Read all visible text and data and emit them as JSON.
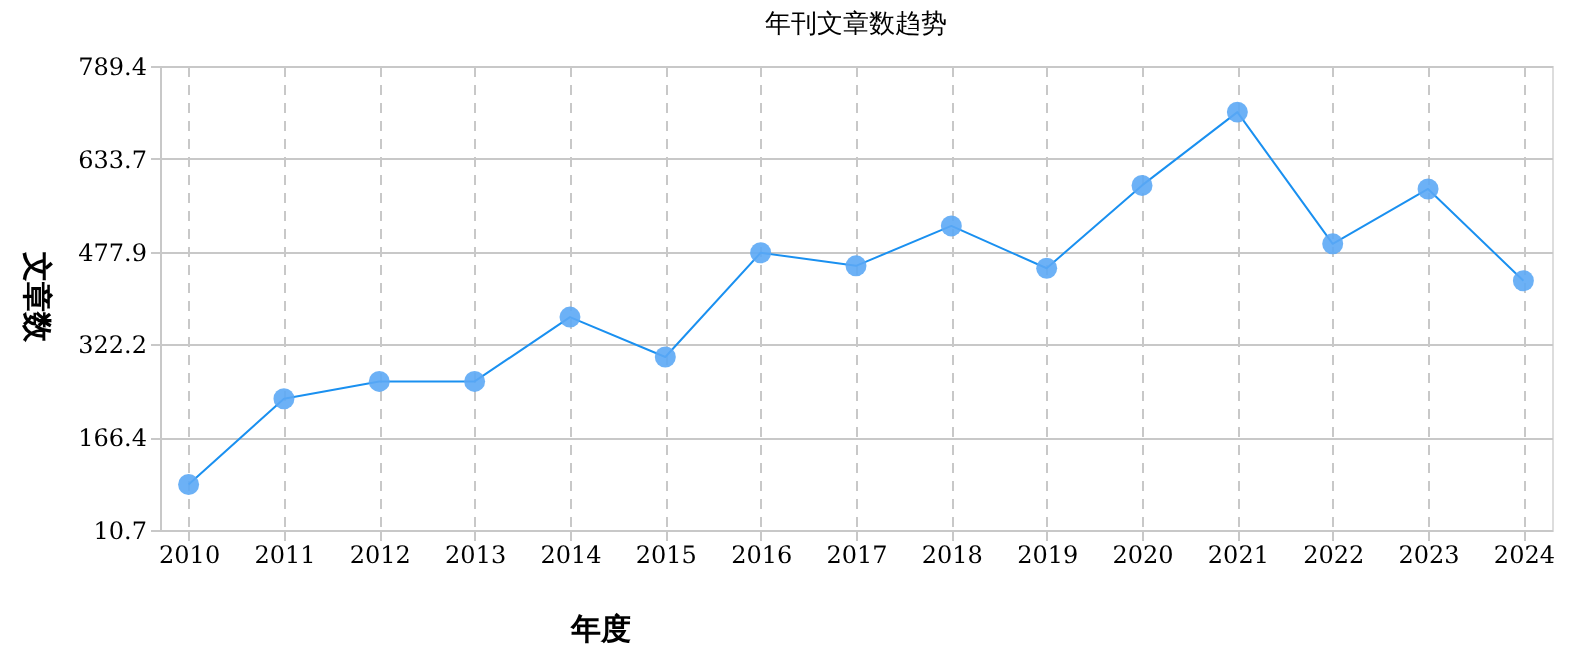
{
  "chart_data": {
    "type": "line",
    "title": "年刊文章数趋势",
    "xlabel": "年度",
    "ylabel": "文章数",
    "categories": [
      "2010",
      "2011",
      "2012",
      "2013",
      "2014",
      "2015",
      "2016",
      "2017",
      "2018",
      "2019",
      "2020",
      "2021",
      "2022",
      "2023",
      "2024"
    ],
    "series": [
      {
        "color": "#1a90f0",
        "values": [
          87,
          231,
          260,
          260,
          368,
          301,
          476,
          454,
          521,
          450,
          589,
          712,
          491,
          583,
          429
        ]
      }
    ],
    "ylim": [
      10.7,
      789.4
    ],
    "yticks": [
      10.7,
      166.4,
      322.2,
      477.9,
      633.7,
      789.4
    ],
    "grid": true,
    "marker": "circle",
    "line_style": "solid"
  }
}
